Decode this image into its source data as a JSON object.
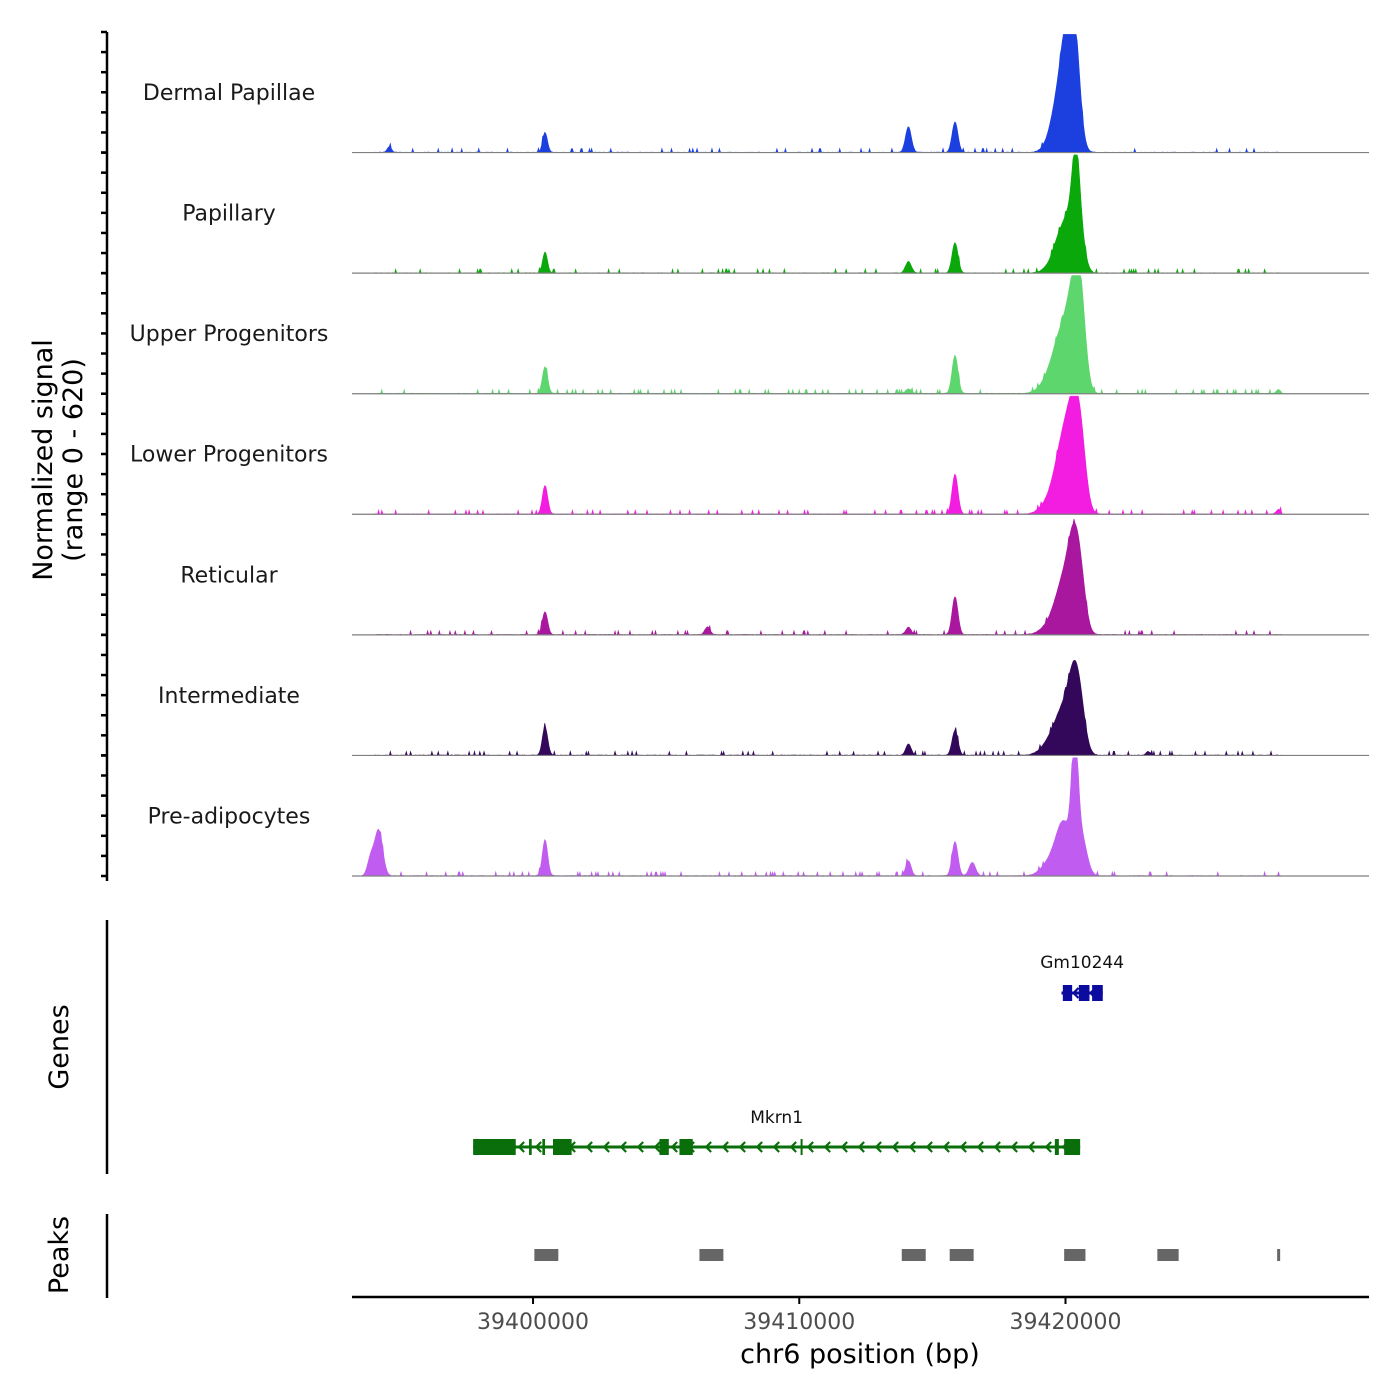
{
  "chart_data": {
    "type": "area",
    "title": "",
    "ylabel": "Normalized signal",
    "ylabel_range": "(range 0 - 620)",
    "ylim": [
      0,
      620
    ],
    "xlabel": "chr6 position (bp)",
    "xlim": [
      39393200,
      39431400
    ],
    "xticks": [
      39400000,
      39410000,
      39420000
    ],
    "xtick_labels": [
      "39400000",
      "39410000",
      "39420000"
    ],
    "grid": false,
    "tracks": [
      {
        "name": "Dermal Papillae",
        "color": "#1c40e0",
        "peaks": [
          {
            "pos": 39394600,
            "height": 30,
            "width": 80
          },
          {
            "pos": 39400450,
            "height": 105,
            "width": 90
          },
          {
            "pos": 39414100,
            "height": 135,
            "width": 110
          },
          {
            "pos": 39415850,
            "height": 160,
            "width": 110
          },
          {
            "pos": 39419600,
            "height": 60,
            "width": 300
          },
          {
            "pos": 39419850,
            "height": 280,
            "width": 300
          },
          {
            "pos": 39420000,
            "height": 180,
            "width": 200
          },
          {
            "pos": 39420230,
            "height": 400,
            "width": 220
          },
          {
            "pos": 39420400,
            "height": 280,
            "width": 180
          }
        ]
      },
      {
        "name": "Papillary",
        "color": "#0aa80a",
        "peaks": [
          {
            "pos": 39400450,
            "height": 110,
            "width": 90
          },
          {
            "pos": 39414100,
            "height": 60,
            "width": 110
          },
          {
            "pos": 39415850,
            "height": 160,
            "width": 110
          },
          {
            "pos": 39419600,
            "height": 60,
            "width": 300
          },
          {
            "pos": 39419900,
            "height": 190,
            "width": 250
          },
          {
            "pos": 39420130,
            "height": 130,
            "width": 150
          },
          {
            "pos": 39420380,
            "height": 500,
            "width": 140
          },
          {
            "pos": 39420550,
            "height": 200,
            "width": 180
          }
        ]
      },
      {
        "name": "Upper Progenitors",
        "color": "#5ed66e",
        "peaks": [
          {
            "pos": 39400450,
            "height": 140,
            "width": 100
          },
          {
            "pos": 39414100,
            "height": 25,
            "width": 100
          },
          {
            "pos": 39415850,
            "height": 200,
            "width": 110
          },
          {
            "pos": 39419450,
            "height": 80,
            "width": 350
          },
          {
            "pos": 39419850,
            "height": 250,
            "width": 300
          },
          {
            "pos": 39420300,
            "height": 410,
            "width": 250
          },
          {
            "pos": 39420550,
            "height": 400,
            "width": 200
          },
          {
            "pos": 39428000,
            "height": 20,
            "width": 80
          }
        ]
      },
      {
        "name": "Lower Progenitors",
        "color": "#f21de0",
        "peaks": [
          {
            "pos": 39400450,
            "height": 150,
            "width": 100
          },
          {
            "pos": 39415850,
            "height": 210,
            "width": 110
          },
          {
            "pos": 39419500,
            "height": 80,
            "width": 350
          },
          {
            "pos": 39419950,
            "height": 350,
            "width": 300
          },
          {
            "pos": 39420350,
            "height": 420,
            "width": 240
          },
          {
            "pos": 39420600,
            "height": 220,
            "width": 200
          },
          {
            "pos": 39428000,
            "height": 25,
            "width": 80
          }
        ]
      },
      {
        "name": "Reticular",
        "color": "#a8179e",
        "peaks": [
          {
            "pos": 39400450,
            "height": 120,
            "width": 100
          },
          {
            "pos": 39406550,
            "height": 40,
            "width": 100
          },
          {
            "pos": 39414100,
            "height": 40,
            "width": 100
          },
          {
            "pos": 39415850,
            "height": 200,
            "width": 110
          },
          {
            "pos": 39419500,
            "height": 60,
            "width": 350
          },
          {
            "pos": 39419950,
            "height": 250,
            "width": 300
          },
          {
            "pos": 39420320,
            "height": 380,
            "width": 220
          },
          {
            "pos": 39420580,
            "height": 200,
            "width": 200
          }
        ]
      },
      {
        "name": "Intermediate",
        "color": "#33085a",
        "peaks": [
          {
            "pos": 39400450,
            "height": 150,
            "width": 100
          },
          {
            "pos": 39414100,
            "height": 60,
            "width": 100
          },
          {
            "pos": 39415850,
            "height": 130,
            "width": 110
          },
          {
            "pos": 39419500,
            "height": 80,
            "width": 350
          },
          {
            "pos": 39419950,
            "height": 200,
            "width": 300
          },
          {
            "pos": 39420330,
            "height": 330,
            "width": 220
          },
          {
            "pos": 39420580,
            "height": 160,
            "width": 200
          },
          {
            "pos": 39423100,
            "height": 20,
            "width": 80
          }
        ]
      },
      {
        "name": "Pre-adipocytes",
        "color": "#c05cf0",
        "peaks": [
          {
            "pos": 39393900,
            "height": 90,
            "width": 120
          },
          {
            "pos": 39394200,
            "height": 240,
            "width": 150
          },
          {
            "pos": 39400450,
            "height": 190,
            "width": 100
          },
          {
            "pos": 39414100,
            "height": 80,
            "width": 100
          },
          {
            "pos": 39415850,
            "height": 180,
            "width": 110
          },
          {
            "pos": 39416500,
            "height": 70,
            "width": 120
          },
          {
            "pos": 39419500,
            "height": 80,
            "width": 350
          },
          {
            "pos": 39419950,
            "height": 250,
            "width": 280
          },
          {
            "pos": 39420350,
            "height": 600,
            "width": 120
          },
          {
            "pos": 39420600,
            "height": 200,
            "width": 200
          }
        ]
      }
    ],
    "genes_panel_label": "Genes",
    "genes": [
      {
        "name": "Gm10244",
        "color": "#0b0ba0",
        "strand": "-",
        "start": 39419850,
        "end": 39421400,
        "exons": [
          [
            39419900,
            39420250
          ],
          [
            39420500,
            39420900
          ],
          [
            39421000,
            39421400
          ]
        ],
        "row": 0
      },
      {
        "name": "Mkrn1",
        "color": "#0a6e0a",
        "strand": "-",
        "start": 39397750,
        "end": 39420550,
        "exons": [
          [
            39397750,
            39399350
          ],
          [
            39399850,
            39399950
          ],
          [
            39400350,
            39400450
          ],
          [
            39400750,
            39401450
          ],
          [
            39404750,
            39405100
          ],
          [
            39405500,
            39406000
          ],
          [
            39410050,
            39410100
          ],
          [
            39419600,
            39419750
          ],
          [
            39419950,
            39420550
          ]
        ],
        "row": 1
      }
    ],
    "peaks_panel_label": "Peaks",
    "peak_regions": [
      [
        39400050,
        39400950
      ],
      [
        39406250,
        39407150
      ],
      [
        39413850,
        39414750
      ],
      [
        39415650,
        39416550
      ],
      [
        39419950,
        39420750
      ],
      [
        39423450,
        39424250
      ],
      [
        39427950,
        39428050
      ]
    ]
  }
}
